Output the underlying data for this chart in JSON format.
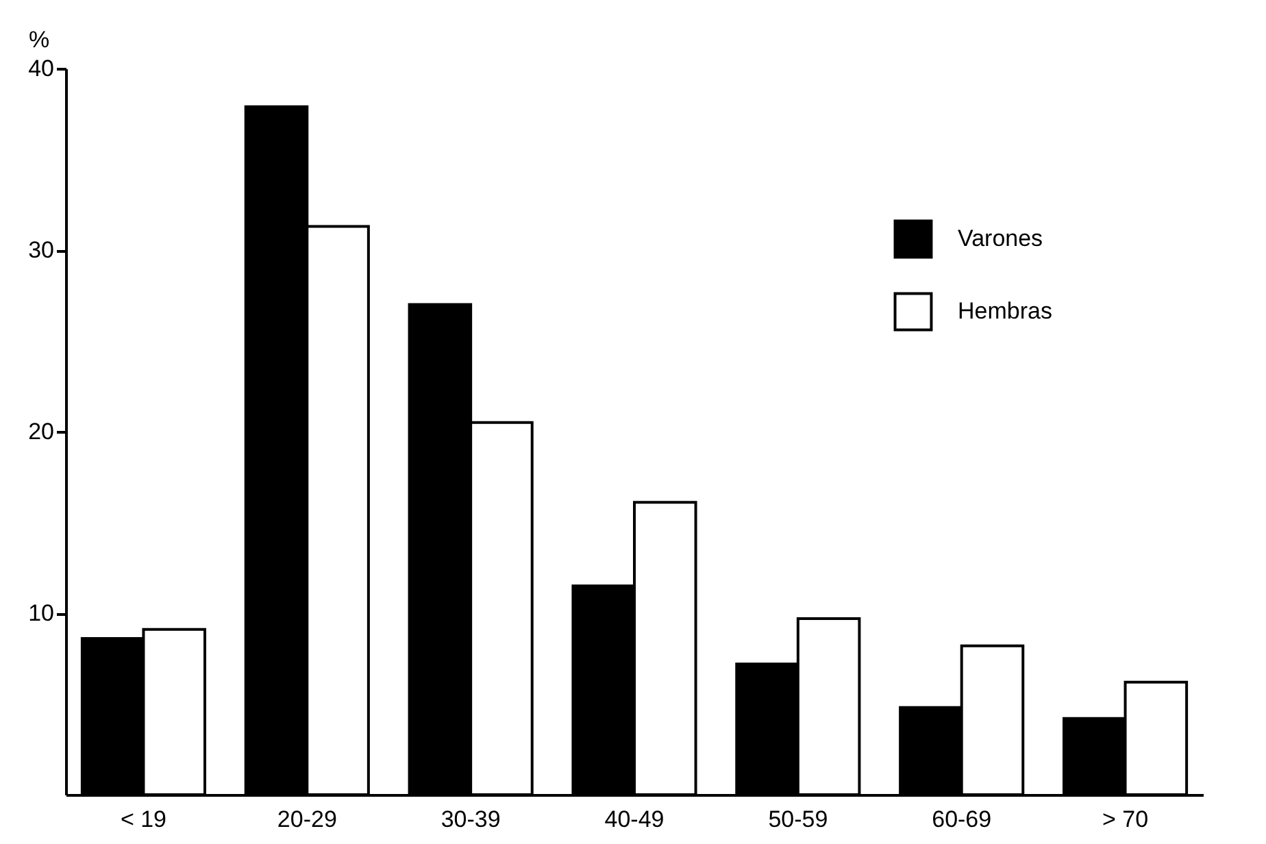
{
  "chart_data": {
    "type": "bar",
    "ylabel": "%",
    "categories": [
      "< 19",
      "20-29",
      "30-39",
      "40-49",
      "50-59",
      "60-69",
      "> 70"
    ],
    "series": [
      {
        "name": "Varones",
        "color": "#000000",
        "values": [
          8.6,
          37.9,
          27.0,
          11.5,
          7.2,
          4.8,
          4.2
        ]
      },
      {
        "name": "Hembras",
        "color": "#ffffff",
        "values": [
          9.1,
          31.3,
          20.5,
          16.1,
          9.7,
          8.2,
          6.2
        ]
      }
    ],
    "ylim": [
      0,
      40
    ],
    "yticks": [
      10,
      20,
      30,
      40
    ],
    "grid": false,
    "legend": "top right"
  }
}
